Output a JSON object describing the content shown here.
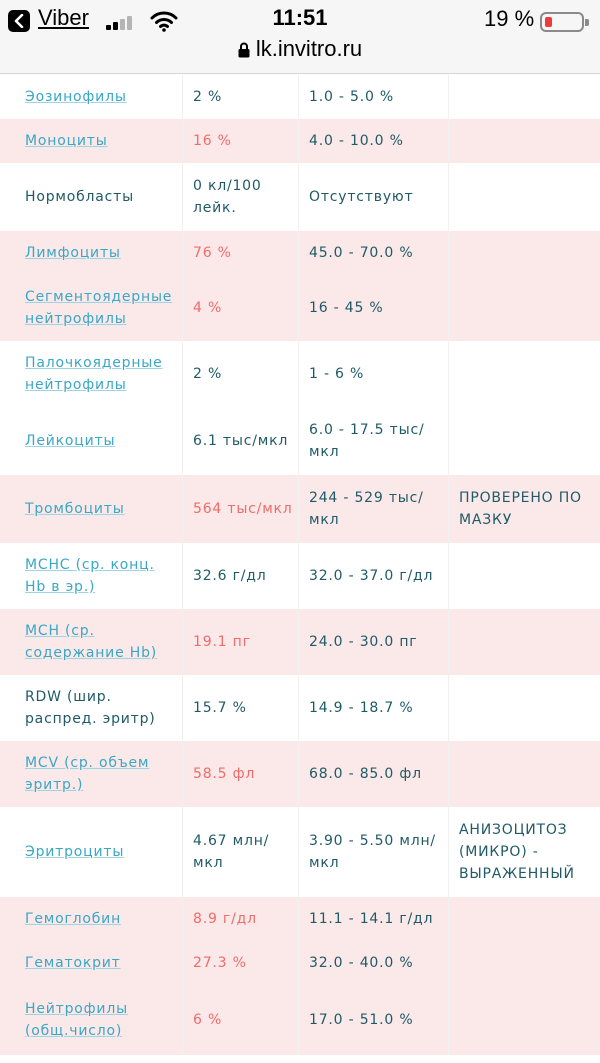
{
  "status_bar": {
    "back_app": "Viber",
    "time": "11:51",
    "battery_percent": "19 %",
    "battery_level": 0.19,
    "battery_color": "#f03a3a",
    "signal_bars_active": 2,
    "url": "lk.invitro.ru",
    "icons": [
      "back-arrow-icon",
      "signal-icon",
      "wifi-icon",
      "battery-icon",
      "lock-icon"
    ]
  },
  "colors": {
    "link": "#3aa7c6",
    "text": "#1f5a66",
    "abnormal": "#ef6c6c",
    "highlight_row": "#fbe8e8"
  },
  "rows": [
    {
      "name": "Эозинофилы",
      "value": "2 %",
      "ref": "1.0 - 5.0 %",
      "comment": "",
      "link": true,
      "abnormal": false,
      "highlight": false
    },
    {
      "name": "Моноциты",
      "value": "16 %",
      "ref": "4.0 - 10.0 %",
      "comment": "",
      "link": true,
      "abnormal": true,
      "highlight": true
    },
    {
      "name": "Нормобласты",
      "value": "0 кл/100 лейк.",
      "ref": "Отсутствуют",
      "comment": "",
      "link": false,
      "abnormal": false,
      "highlight": false
    },
    {
      "name": "Лимфоциты",
      "value": "76 %",
      "ref": "45.0 - 70.0 %",
      "comment": "",
      "link": true,
      "abnormal": true,
      "highlight": true
    },
    {
      "name": "Сегментоядерные нейтрофилы",
      "value": "4 %",
      "ref": "16 - 45 %",
      "comment": "",
      "link": true,
      "abnormal": true,
      "highlight": true
    },
    {
      "name": "Палочкоядерные нейтрофилы",
      "value": "2 %",
      "ref": "1 - 6 %",
      "comment": "",
      "link": true,
      "abnormal": false,
      "highlight": false
    },
    {
      "name": "Лейкоциты",
      "value": "6.1 тыс/мкл",
      "ref": "6.0 - 17.5 тыс/мкл",
      "comment": "",
      "link": true,
      "abnormal": false,
      "highlight": false
    },
    {
      "name": "Тромбоциты",
      "value": "564 тыс/мкл",
      "ref": "244 - 529 тыс/мкл",
      "comment": "ПРОВЕРЕНО ПО МАЗКУ",
      "link": true,
      "abnormal": true,
      "highlight": true
    },
    {
      "name": "MCHC (ср. конц. Hb в эр.)",
      "value": "32.6 г/дл",
      "ref": "32.0 - 37.0 г/дл",
      "comment": "",
      "link": true,
      "abnormal": false,
      "highlight": false
    },
    {
      "name": "MCH (ср. содержание Hb)",
      "value": "19.1 пг",
      "ref": "24.0 - 30.0 пг",
      "comment": "",
      "link": true,
      "abnormal": true,
      "highlight": true
    },
    {
      "name": "RDW (шир. распред. эритр)",
      "value": "15.7 %",
      "ref": "14.9 - 18.7 %",
      "comment": "",
      "link": false,
      "abnormal": false,
      "highlight": false
    },
    {
      "name": "MCV (ср. объем эритр.)",
      "value": "58.5 фл",
      "ref": "68.0 - 85.0 фл",
      "comment": "",
      "link": true,
      "abnormal": true,
      "highlight": true
    },
    {
      "name": "Эритроциты",
      "value": "4.67 млн/мкл",
      "ref": "3.90 - 5.50 млн/мкл",
      "comment": "АНИЗОЦИТОЗ (МИКРО) - ВЫРАЖЕННЫЙ",
      "link": true,
      "abnormal": false,
      "highlight": false
    },
    {
      "name": "Гемоглобин",
      "value": "8.9 г/дл",
      "ref": "11.1 - 14.1 г/дл",
      "comment": "",
      "link": true,
      "abnormal": true,
      "highlight": true
    },
    {
      "name": "Гематокрит",
      "value": "27.3 %",
      "ref": "32.0 - 40.0 %",
      "comment": "",
      "link": true,
      "abnormal": true,
      "highlight": true
    },
    {
      "name": "Нейтрофилы (общ.число)",
      "value": "6 %",
      "ref": "17.0 - 51.0 %",
      "comment": "",
      "link": true,
      "abnormal": true,
      "highlight": true
    }
  ]
}
